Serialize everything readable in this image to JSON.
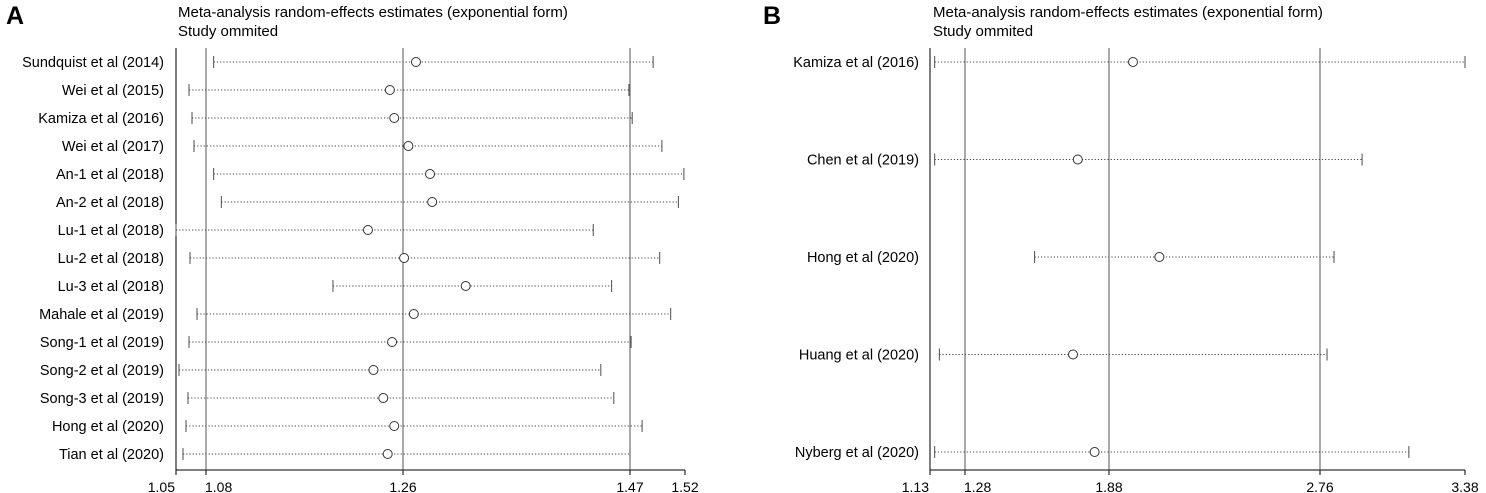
{
  "panels": [
    {
      "letter": "A",
      "title": "Meta-analysis random-effects estimates (exponential form)",
      "subtitle": "Study ommited",
      "tick_labels": [
        "1.05",
        "1.08",
        "1.26",
        "1.47",
        "1.52"
      ]
    },
    {
      "letter": "B",
      "title": "Meta-analysis random-effects estimates (exponential form)",
      "subtitle": "Study ommited",
      "tick_labels": [
        "1.13",
        "1.28",
        "1.88",
        "2.76",
        "3.38"
      ]
    }
  ],
  "chart_data": [
    {
      "type": "scatter",
      "title": "Meta-analysis random-effects estimates (exponential form)",
      "subtitle": "Study ommited",
      "x_ticks": [
        1.05,
        1.08,
        1.26,
        1.47,
        1.52
      ],
      "reference_lines": [
        1.08,
        1.26,
        1.47
      ],
      "xlim": [
        1.05,
        1.52
      ],
      "grid": false,
      "studies": [
        {
          "label": "Sundquist et al (2014)",
          "estimate": 1.272,
          "lower": 1.087,
          "upper": 1.491
        },
        {
          "label": "Wei et al (2015)",
          "estimate": 1.248,
          "lower": 1.063,
          "upper": 1.469
        },
        {
          "label": "Kamiza et al (2016)",
          "estimate": 1.252,
          "lower": 1.066,
          "upper": 1.472
        },
        {
          "label": "Wei et al (2017)",
          "estimate": 1.265,
          "lower": 1.068,
          "upper": 1.499
        },
        {
          "label": "An-1 et al (2018)",
          "estimate": 1.285,
          "lower": 1.087,
          "upper": 1.519
        },
        {
          "label": "An-2 et al (2018)",
          "estimate": 1.287,
          "lower": 1.094,
          "upper": 1.514
        },
        {
          "label": "Lu-1 et al (2018)",
          "estimate": 1.228,
          "lower": 1.05,
          "upper": 1.436
        },
        {
          "label": "Lu-2 et al (2018)",
          "estimate": 1.261,
          "lower": 1.064,
          "upper": 1.497
        },
        {
          "label": "Lu-3 et al (2018)",
          "estimate": 1.318,
          "lower": 1.196,
          "upper": 1.453
        },
        {
          "label": "Mahale et al (2019)",
          "estimate": 1.27,
          "lower": 1.071,
          "upper": 1.507
        },
        {
          "label": "Song-1 et al (2019)",
          "estimate": 1.25,
          "lower": 1.063,
          "upper": 1.471
        },
        {
          "label": "Song-2 et al (2019)",
          "estimate": 1.233,
          "lower": 1.053,
          "upper": 1.443
        },
        {
          "label": "Song-3 et al (2019)",
          "estimate": 1.242,
          "lower": 1.062,
          "upper": 1.455
        },
        {
          "label": "Hong et al (2020)",
          "estimate": 1.252,
          "lower": 1.06,
          "upper": 1.481
        },
        {
          "label": "Tian et al (2020)",
          "estimate": 1.246,
          "lower": 1.057,
          "upper": 1.47
        }
      ]
    },
    {
      "type": "scatter",
      "title": "Meta-analysis random-effects estimates (exponential form)",
      "subtitle": "Study ommited",
      "x_ticks": [
        1.13,
        1.28,
        1.88,
        2.76,
        3.38
      ],
      "reference_lines": [
        1.28,
        1.88,
        2.76
      ],
      "xlim": [
        1.13,
        3.38
      ],
      "grid": false,
      "studies": [
        {
          "label": "Kamiza et al (2016)",
          "estimate": 1.98,
          "lower": 1.15,
          "upper": 3.38
        },
        {
          "label": "Chen et al (2019)",
          "estimate": 1.75,
          "lower": 1.15,
          "upper": 2.94
        },
        {
          "label": "Hong et al (2020)",
          "estimate": 2.09,
          "lower": 1.57,
          "upper": 2.82
        },
        {
          "label": "Huang et al (2020)",
          "estimate": 1.73,
          "lower": 1.17,
          "upper": 2.79
        },
        {
          "label": "Nyberg et al (2020)",
          "estimate": 1.82,
          "lower": 1.15,
          "upper": 3.14
        }
      ]
    }
  ]
}
